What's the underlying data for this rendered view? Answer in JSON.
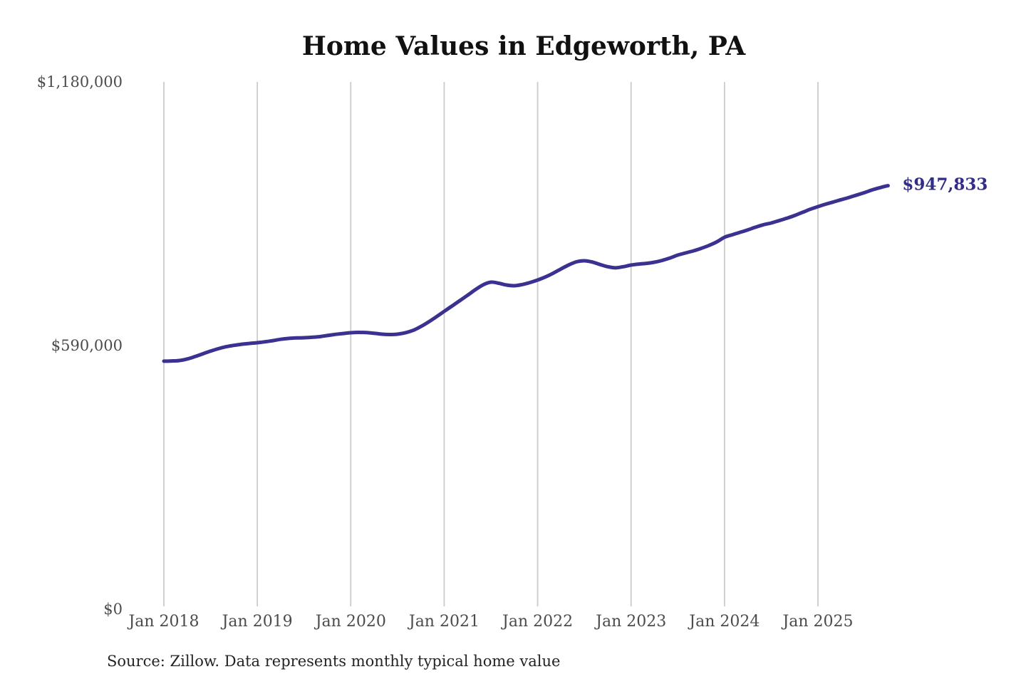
{
  "title": "Home Values in Edgeworth, PA",
  "annotation": {
    "final_value_label": "$947,833"
  },
  "source": {
    "text": "Source: Zillow. Data represents monthly typical home value"
  },
  "colors": {
    "line": "#3a3191",
    "grid": "#cbcbcb",
    "axis_text": "#4c4c4c",
    "title_text": "#111111",
    "annotation_text": "#322d88",
    "background": "#ffffff"
  },
  "chart_data": {
    "type": "line",
    "title": "Home Values in Edgeworth, PA",
    "x_frequency": "monthly",
    "x_start_month": "Jan 2018",
    "x_end_month": "Oct 2025",
    "x_tick_labels": [
      "Jan 2018",
      "Jan 2019",
      "Jan 2020",
      "Jan 2021",
      "Jan 2022",
      "Jan 2023",
      "Jan 2024",
      "Jan 2025"
    ],
    "y_ticks": [
      {
        "label": "$0",
        "value": 0
      },
      {
        "label": "$590,000",
        "value": 590000
      },
      {
        "label": "$1,180,000",
        "value": 1180000
      }
    ],
    "ylim": [
      0,
      1180000
    ],
    "grid": "vertical-only",
    "legend": "none",
    "series": [
      {
        "name": "Typical home value",
        "final_value": 947833,
        "values": [
          555000,
          555500,
          556500,
          560000,
          565500,
          571500,
          577500,
          583000,
          587500,
          590500,
          593000,
          594800,
          596400,
          598500,
          601000,
          604000,
          606000,
          607000,
          607500,
          608500,
          610000,
          612500,
          615000,
          617000,
          618700,
          619500,
          619000,
          617500,
          615500,
          614700,
          615500,
          618500,
          624000,
          632500,
          643000,
          654500,
          666500,
          678500,
          690500,
          702500,
          715000,
          726000,
          731900,
          729500,
          725500,
          723900,
          726500,
          731000,
          736700,
          743500,
          752000,
          761500,
          770500,
          777500,
          779800,
          777000,
          771500,
          766500,
          764000,
          766500,
          770200,
          772500,
          774000,
          776500,
          780500,
          786000,
          792500,
          797300,
          802000,
          807500,
          814000,
          822000,
          832400,
          838000,
          843500,
          849000,
          855000,
          860500,
          864300,
          869500,
          875000,
          881000,
          888000,
          895000,
          900900,
          906500,
          911500,
          916500,
          921500,
          927000,
          932500,
          938500,
          943500,
          947833
        ]
      }
    ]
  }
}
